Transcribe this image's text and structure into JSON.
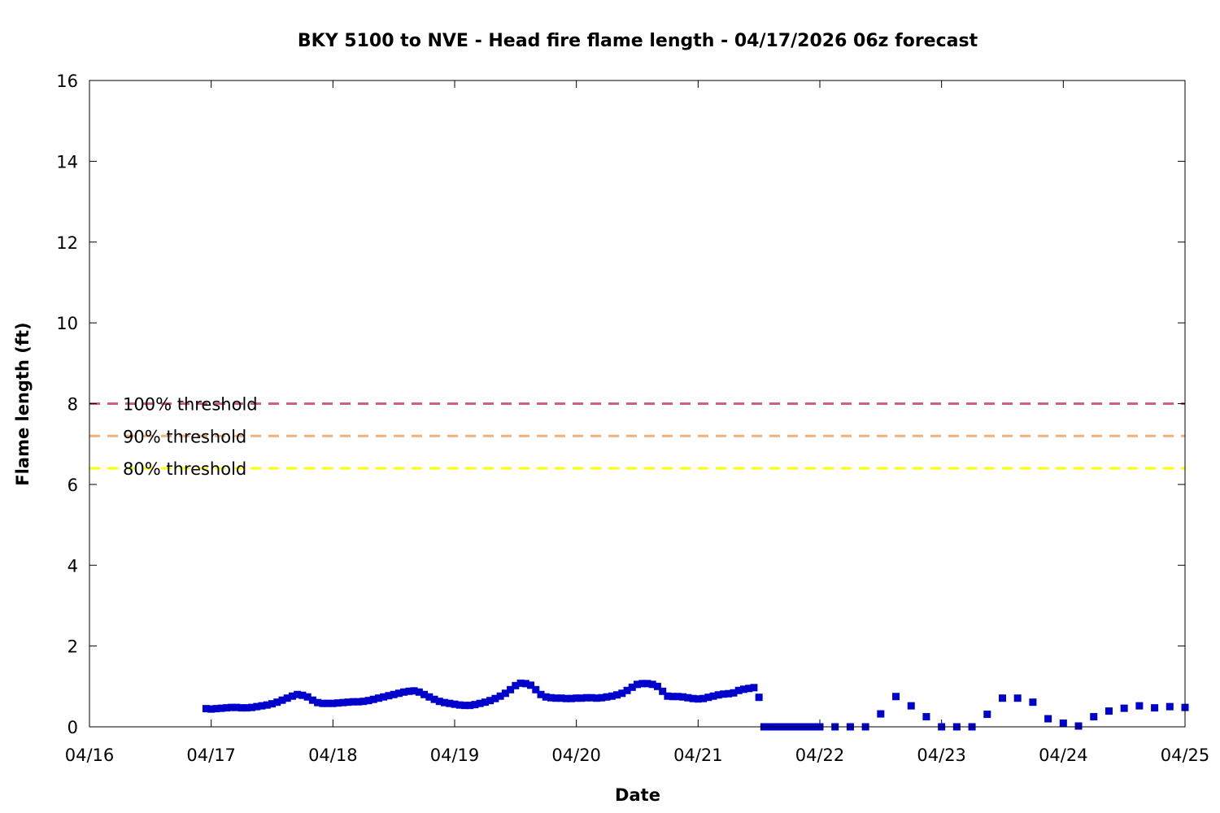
{
  "chart_data": {
    "type": "scatter",
    "title": "BKY 5100 to NVE - Head fire flame length - 04/17/2026 06z forecast",
    "xlabel": "Date",
    "ylabel": "Flame length (ft)",
    "xlim": [
      "04/16",
      "04/25"
    ],
    "ylim": [
      0,
      16
    ],
    "x_ticks": [
      "04/16",
      "04/17",
      "04/18",
      "04/19",
      "04/20",
      "04/21",
      "04/22",
      "04/23",
      "04/24",
      "04/25"
    ],
    "y_ticks": [
      0,
      2,
      4,
      6,
      8,
      10,
      12,
      14,
      16
    ],
    "grid": false,
    "reference_lines": [
      {
        "label": "100% threshold",
        "y": 8.0,
        "color": "#d1607a",
        "style": "dashed"
      },
      {
        "label": "90% threshold",
        "y": 7.2,
        "color": "#f0b27a",
        "style": "dashed"
      },
      {
        "label": "80% threshold",
        "y": 6.4,
        "color": "#ffff00",
        "style": "dashed"
      }
    ],
    "series": [
      {
        "color": "#0000cc",
        "marker": "square",
        "points": [
          [
            "04/16 23:00",
            0.45
          ],
          [
            "04/17 00:00",
            0.44
          ],
          [
            "04/17 01:00",
            0.45
          ],
          [
            "04/17 02:00",
            0.46
          ],
          [
            "04/17 03:00",
            0.47
          ],
          [
            "04/17 04:00",
            0.48
          ],
          [
            "04/17 05:00",
            0.48
          ],
          [
            "04/17 06:00",
            0.47
          ],
          [
            "04/17 07:00",
            0.47
          ],
          [
            "04/17 08:00",
            0.48
          ],
          [
            "04/17 09:00",
            0.5
          ],
          [
            "04/17 10:00",
            0.52
          ],
          [
            "04/17 11:00",
            0.54
          ],
          [
            "04/17 12:00",
            0.57
          ],
          [
            "04/17 13:00",
            0.61
          ],
          [
            "04/17 14:00",
            0.66
          ],
          [
            "04/17 15:00",
            0.71
          ],
          [
            "04/17 16:00",
            0.76
          ],
          [
            "04/17 17:00",
            0.8
          ],
          [
            "04/17 18:00",
            0.78
          ],
          [
            "04/17 19:00",
            0.74
          ],
          [
            "04/17 20:00",
            0.66
          ],
          [
            "04/17 21:00",
            0.6
          ],
          [
            "04/17 22:00",
            0.58
          ],
          [
            "04/17 23:00",
            0.58
          ],
          [
            "04/18 00:00",
            0.58
          ],
          [
            "04/18 01:00",
            0.59
          ],
          [
            "04/18 02:00",
            0.6
          ],
          [
            "04/18 03:00",
            0.61
          ],
          [
            "04/18 04:00",
            0.62
          ],
          [
            "04/18 05:00",
            0.62
          ],
          [
            "04/18 06:00",
            0.63
          ],
          [
            "04/18 07:00",
            0.65
          ],
          [
            "04/18 08:00",
            0.68
          ],
          [
            "04/18 09:00",
            0.71
          ],
          [
            "04/18 10:00",
            0.74
          ],
          [
            "04/18 11:00",
            0.77
          ],
          [
            "04/18 12:00",
            0.8
          ],
          [
            "04/18 13:00",
            0.83
          ],
          [
            "04/18 14:00",
            0.86
          ],
          [
            "04/18 15:00",
            0.88
          ],
          [
            "04/18 16:00",
            0.89
          ],
          [
            "04/18 17:00",
            0.86
          ],
          [
            "04/18 18:00",
            0.8
          ],
          [
            "04/18 19:00",
            0.74
          ],
          [
            "04/18 20:00",
            0.68
          ],
          [
            "04/18 21:00",
            0.63
          ],
          [
            "04/18 22:00",
            0.6
          ],
          [
            "04/18 23:00",
            0.58
          ],
          [
            "04/19 00:00",
            0.56
          ],
          [
            "04/19 01:00",
            0.54
          ],
          [
            "04/19 02:00",
            0.53
          ],
          [
            "04/19 03:00",
            0.53
          ],
          [
            "04/19 04:00",
            0.55
          ],
          [
            "04/19 05:00",
            0.58
          ],
          [
            "04/19 06:00",
            0.61
          ],
          [
            "04/19 07:00",
            0.65
          ],
          [
            "04/19 08:00",
            0.7
          ],
          [
            "04/19 09:00",
            0.76
          ],
          [
            "04/19 10:00",
            0.83
          ],
          [
            "04/19 11:00",
            0.92
          ],
          [
            "04/19 12:00",
            1.02
          ],
          [
            "04/19 13:00",
            1.08
          ],
          [
            "04/19 14:00",
            1.07
          ],
          [
            "04/19 15:00",
            1.03
          ],
          [
            "04/19 16:00",
            0.92
          ],
          [
            "04/19 17:00",
            0.8
          ],
          [
            "04/19 18:00",
            0.74
          ],
          [
            "04/19 19:00",
            0.72
          ],
          [
            "04/19 20:00",
            0.71
          ],
          [
            "04/19 21:00",
            0.71
          ],
          [
            "04/19 22:00",
            0.7
          ],
          [
            "04/19 23:00",
            0.7
          ],
          [
            "04/20 00:00",
            0.71
          ],
          [
            "04/20 01:00",
            0.71
          ],
          [
            "04/20 02:00",
            0.72
          ],
          [
            "04/20 03:00",
            0.72
          ],
          [
            "04/20 04:00",
            0.71
          ],
          [
            "04/20 05:00",
            0.72
          ],
          [
            "04/20 06:00",
            0.74
          ],
          [
            "04/20 07:00",
            0.76
          ],
          [
            "04/20 08:00",
            0.79
          ],
          [
            "04/20 09:00",
            0.83
          ],
          [
            "04/20 10:00",
            0.9
          ],
          [
            "04/20 11:00",
            0.98
          ],
          [
            "04/20 12:00",
            1.05
          ],
          [
            "04/20 13:00",
            1.07
          ],
          [
            "04/20 14:00",
            1.07
          ],
          [
            "04/20 15:00",
            1.05
          ],
          [
            "04/20 16:00",
            1.0
          ],
          [
            "04/20 17:00",
            0.88
          ],
          [
            "04/20 18:00",
            0.76
          ],
          [
            "04/20 19:00",
            0.75
          ],
          [
            "04/20 20:00",
            0.75
          ],
          [
            "04/20 21:00",
            0.74
          ],
          [
            "04/20 22:00",
            0.72
          ],
          [
            "04/20 23:00",
            0.7
          ],
          [
            "04/21 00:00",
            0.69
          ],
          [
            "04/21 01:00",
            0.7
          ],
          [
            "04/21 02:00",
            0.73
          ],
          [
            "04/21 03:00",
            0.76
          ],
          [
            "04/21 04:00",
            0.79
          ],
          [
            "04/21 05:00",
            0.81
          ],
          [
            "04/21 06:00",
            0.82
          ],
          [
            "04/21 07:00",
            0.84
          ],
          [
            "04/21 08:00",
            0.9
          ],
          [
            "04/21 09:00",
            0.93
          ],
          [
            "04/21 10:00",
            0.95
          ],
          [
            "04/21 11:00",
            0.97
          ],
          [
            "04/21 12:00",
            0.73
          ],
          [
            "04/21 13:00",
            0.0
          ],
          [
            "04/21 14:00",
            0.0
          ],
          [
            "04/21 15:00",
            0.0
          ],
          [
            "04/21 16:00",
            0.0
          ],
          [
            "04/21 17:00",
            0.0
          ],
          [
            "04/21 18:00",
            0.0
          ],
          [
            "04/21 19:00",
            0.0
          ],
          [
            "04/21 20:00",
            0.0
          ],
          [
            "04/21 21:00",
            0.0
          ],
          [
            "04/21 22:00",
            0.0
          ],
          [
            "04/21 23:00",
            0.0
          ],
          [
            "04/22 00:00",
            0.0
          ],
          [
            "04/22 03:00",
            0.0
          ],
          [
            "04/22 06:00",
            0.0
          ],
          [
            "04/22 09:00",
            0.0
          ],
          [
            "04/22 12:00",
            0.32
          ],
          [
            "04/22 15:00",
            0.75
          ],
          [
            "04/22 18:00",
            0.52
          ],
          [
            "04/22 21:00",
            0.25
          ],
          [
            "04/23 00:00",
            0.0
          ],
          [
            "04/23 03:00",
            0.0
          ],
          [
            "04/23 06:00",
            0.0
          ],
          [
            "04/23 09:00",
            0.31
          ],
          [
            "04/23 12:00",
            0.71
          ],
          [
            "04/23 15:00",
            0.71
          ],
          [
            "04/23 18:00",
            0.61
          ],
          [
            "04/23 21:00",
            0.2
          ],
          [
            "04/24 00:00",
            0.09
          ],
          [
            "04/24 03:00",
            0.02
          ],
          [
            "04/24 06:00",
            0.25
          ],
          [
            "04/24 09:00",
            0.39
          ],
          [
            "04/24 12:00",
            0.46
          ],
          [
            "04/24 15:00",
            0.52
          ],
          [
            "04/24 18:00",
            0.47
          ],
          [
            "04/24 21:00",
            0.5
          ],
          [
            "04/25 00:00",
            0.48
          ]
        ]
      }
    ]
  }
}
